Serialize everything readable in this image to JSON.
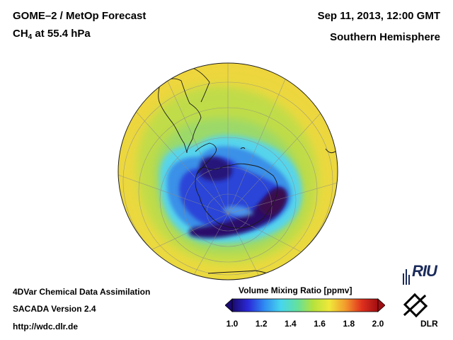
{
  "header": {
    "title_line1": "GOME–2 / MetOp Forecast",
    "title_line2_prefix": "CH",
    "title_line2_sub": "4",
    "title_line2_suffix": " at 55.4 hPa",
    "date": "Sep 11, 2013, 12:00 GMT",
    "hemisphere": "Southern Hemisphere"
  },
  "footer": {
    "line1": "4DVar Chemical Data Assimilation",
    "line2": "SACADA Version 2.4",
    "line3": "http://wdc.dlr.de"
  },
  "colorbar": {
    "title": "Volume Mixing Ratio [ppmv]",
    "min": 1.0,
    "max": 2.0,
    "ticks": [
      "1.0",
      "1.2",
      "1.4",
      "1.6",
      "1.8",
      "2.0"
    ],
    "colors": [
      "#1a0a6e",
      "#2a2ad8",
      "#2f8cf2",
      "#46d6ee",
      "#62e0a0",
      "#b6e23c",
      "#f0e83a",
      "#f39a2c",
      "#e0301e",
      "#a00e12"
    ]
  },
  "map": {
    "projection": "orthographic",
    "center": "South Pole",
    "field_colors": {
      "background": "#ecd43e",
      "ring_green": "#b6dc4e",
      "cyan": "#52d0ea",
      "blue": "#3a8fe6",
      "deep_blue": "#2a3bd6",
      "vortex_core": "#23106e"
    }
  },
  "logos": {
    "riu": "RIU",
    "dlr": "DLR"
  }
}
